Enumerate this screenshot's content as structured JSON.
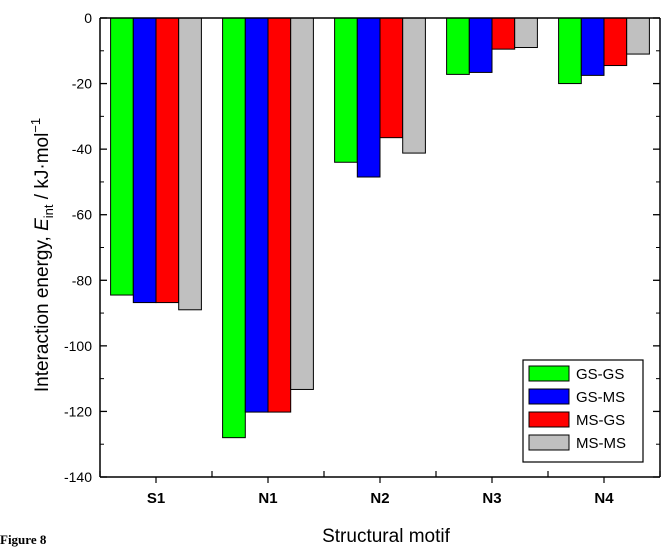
{
  "chart_data": {
    "type": "bar",
    "title": "",
    "xlabel": "Structural motif",
    "ylabel_parts": {
      "prefix": "Interaction energy, ",
      "var": "E",
      "sub": "int",
      "mid": " / kJ·mol",
      "sup": "−1"
    },
    "categories": [
      "S1",
      "N1",
      "N2",
      "N3",
      "N4"
    ],
    "series": [
      {
        "name": "GS-GS",
        "color": "#00ff00",
        "values": [
          -84.5,
          -128,
          -44,
          -17.2,
          -20
        ]
      },
      {
        "name": "GS-MS",
        "color": "#0000ff",
        "values": [
          -86.8,
          -120.2,
          -48.5,
          -16.6,
          -17.5
        ]
      },
      {
        "name": "MS-GS",
        "color": "#ff0000",
        "values": [
          -86.8,
          -120.2,
          -36.5,
          -9.5,
          -14.5
        ]
      },
      {
        "name": "MS-MS",
        "color": "#c0c0c0",
        "values": [
          -89,
          -113.3,
          -41.2,
          -9,
          -11
        ]
      }
    ],
    "ylim": [
      -140,
      0
    ],
    "yticks": [
      0,
      -20,
      -40,
      -60,
      -80,
      -100,
      -120,
      -140
    ],
    "ytick_labels": [
      "0",
      "-20",
      "-40",
      "-60",
      "-80",
      "-100",
      "-120",
      "-140"
    ],
    "legend_position": "bottom-right",
    "grid": false
  },
  "caption_fragment": "Figure 8"
}
